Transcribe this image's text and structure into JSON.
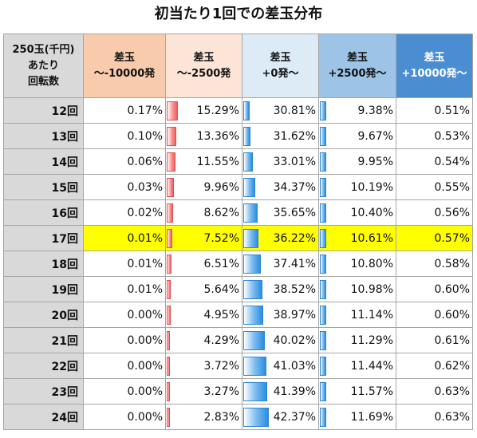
{
  "title": "初当たり1回での差玉分布",
  "header": {
    "row_head": "250玉(千円)\nあたり\n回転数",
    "columns": [
      "差玉\n～-10000発",
      "差玉\n～-2500発",
      "差玉\n+0発～",
      "差玉\n+2500発～",
      "差玉\n+10000発～"
    ]
  },
  "colors": {
    "header_row": "#d9d9d9",
    "header_col1": "#f8cbad",
    "header_col2": "#fce4d6",
    "header_col3": "#ddebf7",
    "header_col4": "#9dc3e6",
    "header_col5": "#4a8ed1",
    "highlight": "#ffff00",
    "bar_red": "#f06060",
    "bar_blue": "#2b8de0"
  },
  "highlight_row": "17回",
  "rows": [
    {
      "label": "12回",
      "values": [
        "0.17%",
        "15.29%",
        "30.81%",
        "9.38%",
        "0.51%"
      ],
      "nums": [
        0.17,
        15.29,
        30.81,
        9.38,
        0.51
      ]
    },
    {
      "label": "13回",
      "values": [
        "0.10%",
        "13.36%",
        "31.62%",
        "9.67%",
        "0.53%"
      ],
      "nums": [
        0.1,
        13.36,
        31.62,
        9.67,
        0.53
      ]
    },
    {
      "label": "14回",
      "values": [
        "0.06%",
        "11.55%",
        "33.01%",
        "9.95%",
        "0.54%"
      ],
      "nums": [
        0.06,
        11.55,
        33.01,
        9.95,
        0.54
      ]
    },
    {
      "label": "15回",
      "values": [
        "0.03%",
        "9.96%",
        "34.37%",
        "10.19%",
        "0.55%"
      ],
      "nums": [
        0.03,
        9.96,
        34.37,
        10.19,
        0.55
      ]
    },
    {
      "label": "16回",
      "values": [
        "0.02%",
        "8.62%",
        "35.65%",
        "10.40%",
        "0.56%"
      ],
      "nums": [
        0.02,
        8.62,
        35.65,
        10.4,
        0.56
      ]
    },
    {
      "label": "17回",
      "values": [
        "0.01%",
        "7.52%",
        "36.22%",
        "10.61%",
        "0.57%"
      ],
      "nums": [
        0.01,
        7.52,
        36.22,
        10.61,
        0.57
      ]
    },
    {
      "label": "18回",
      "values": [
        "0.01%",
        "6.51%",
        "37.41%",
        "10.80%",
        "0.58%"
      ],
      "nums": [
        0.01,
        6.51,
        37.41,
        10.8,
        0.58
      ]
    },
    {
      "label": "19回",
      "values": [
        "0.01%",
        "5.64%",
        "38.52%",
        "10.98%",
        "0.60%"
      ],
      "nums": [
        0.01,
        5.64,
        38.52,
        10.98,
        0.6
      ]
    },
    {
      "label": "20回",
      "values": [
        "0.00%",
        "4.95%",
        "38.97%",
        "11.14%",
        "0.60%"
      ],
      "nums": [
        0.0,
        4.95,
        38.97,
        11.14,
        0.6
      ]
    },
    {
      "label": "21回",
      "values": [
        "0.00%",
        "4.29%",
        "40.02%",
        "11.29%",
        "0.61%"
      ],
      "nums": [
        0.0,
        4.29,
        40.02,
        11.29,
        0.61
      ]
    },
    {
      "label": "22回",
      "values": [
        "0.00%",
        "3.72%",
        "41.03%",
        "11.44%",
        "0.62%"
      ],
      "nums": [
        0.0,
        3.72,
        41.03,
        11.44,
        0.62
      ]
    },
    {
      "label": "23回",
      "values": [
        "0.00%",
        "3.27%",
        "41.39%",
        "11.57%",
        "0.63%"
      ],
      "nums": [
        0.0,
        3.27,
        41.39,
        11.57,
        0.63
      ]
    },
    {
      "label": "24回",
      "values": [
        "0.00%",
        "2.83%",
        "42.37%",
        "11.69%",
        "0.63%"
      ],
      "nums": [
        0.0,
        2.83,
        42.37,
        11.69,
        0.63
      ]
    }
  ]
}
